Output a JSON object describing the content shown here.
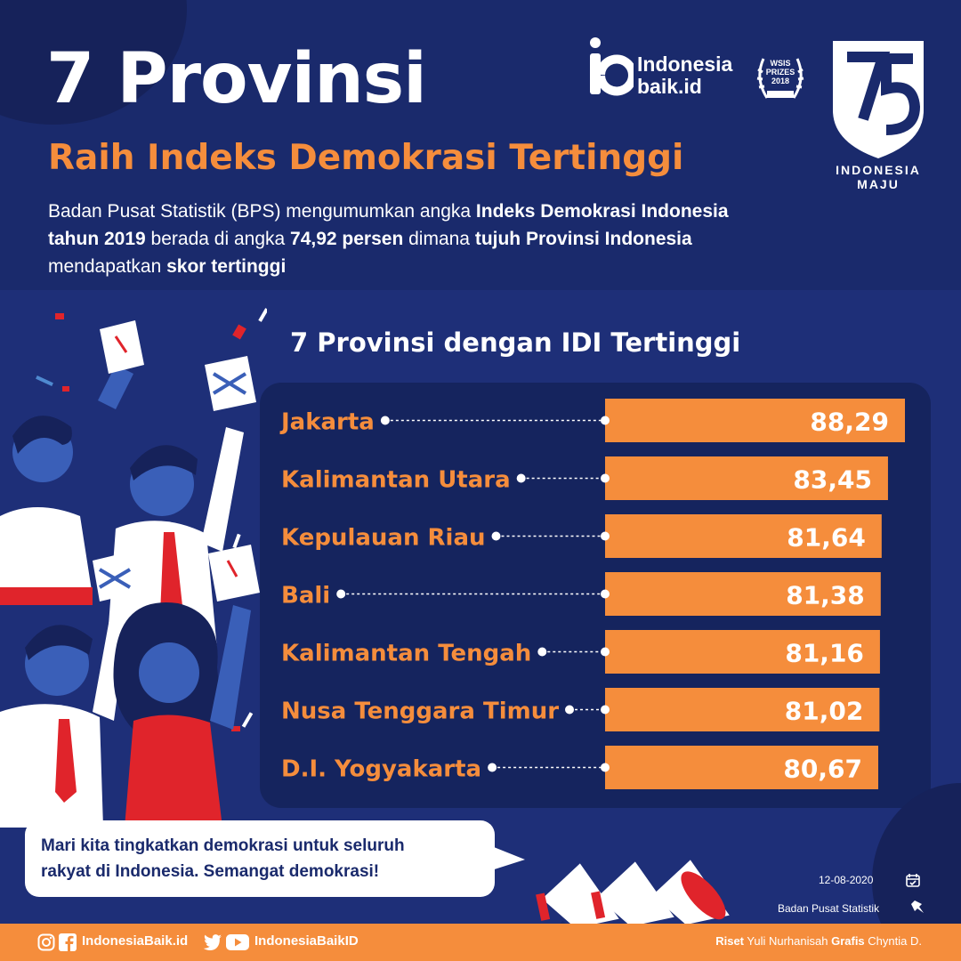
{
  "header": {
    "title": "7 Provinsi",
    "subtitle": "Raih Indeks Demokrasi Tertinggi",
    "intro": [
      {
        "t": "Badan Pusat Statistik (BPS) mengumumkan angka ",
        "b": false
      },
      {
        "t": "Indeks Demokrasi Indonesia tahun 2019",
        "b": true
      },
      {
        "t": " berada di angka ",
        "b": false
      },
      {
        "t": "74,92 persen",
        "b": true
      },
      {
        "t": " dimana ",
        "b": false
      },
      {
        "t": "tujuh Provinsi Indonesia",
        "b": true
      },
      {
        "t": " mendapatkan ",
        "b": false
      },
      {
        "t": "skor tertinggi",
        "b": true
      }
    ]
  },
  "logos": {
    "brand_line1": "Indonesia",
    "brand_line2": "baik.id",
    "award_lines": [
      "WSIS",
      "PRIZES",
      "2018"
    ],
    "award_winner": "WINNER",
    "anniversary_line1": "INDONESIA",
    "anniversary_line2": "MAJU"
  },
  "chart_data": {
    "type": "bar",
    "orientation": "horizontal",
    "title": "7 Provinsi dengan IDI Tertinggi",
    "categories": [
      "Jakarta",
      "Kalimantan Utara",
      "Kepulauan Riau",
      "Bali",
      "Kalimantan Tengah",
      "Nusa Tenggara Timur",
      "D.I. Yogyakarta"
    ],
    "values": [
      88.29,
      83.45,
      81.64,
      81.38,
      81.16,
      81.02,
      80.67
    ],
    "value_labels": [
      "88,29",
      "83,45",
      "81,64",
      "81,38",
      "81,16",
      "81,02",
      "80,67"
    ],
    "bar_color": "#f58d3c",
    "label_color": "#f58d3c"
  },
  "bubble": {
    "line1": "Mari kita tingkatkan demokrasi  untuk seluruh",
    "line2": "rakyat di Indonesia.  Semangat demokrasi!"
  },
  "meta": {
    "date": "12-08-2020",
    "source": "Badan Pusat Statistik"
  },
  "footer": {
    "handle_left": "IndonesiaBaik.id",
    "handle_right": "IndonesiaBaikID",
    "credit_riset_label": "Riset",
    "credit_riset_name": "Yuli Nurhanisah",
    "credit_grafis_label": "Grafis",
    "credit_grafis_name": "Chyntia D."
  },
  "colors": {
    "background": "#1e2f78",
    "accent": "#f58d3c",
    "navy": "#1a2a6c"
  }
}
